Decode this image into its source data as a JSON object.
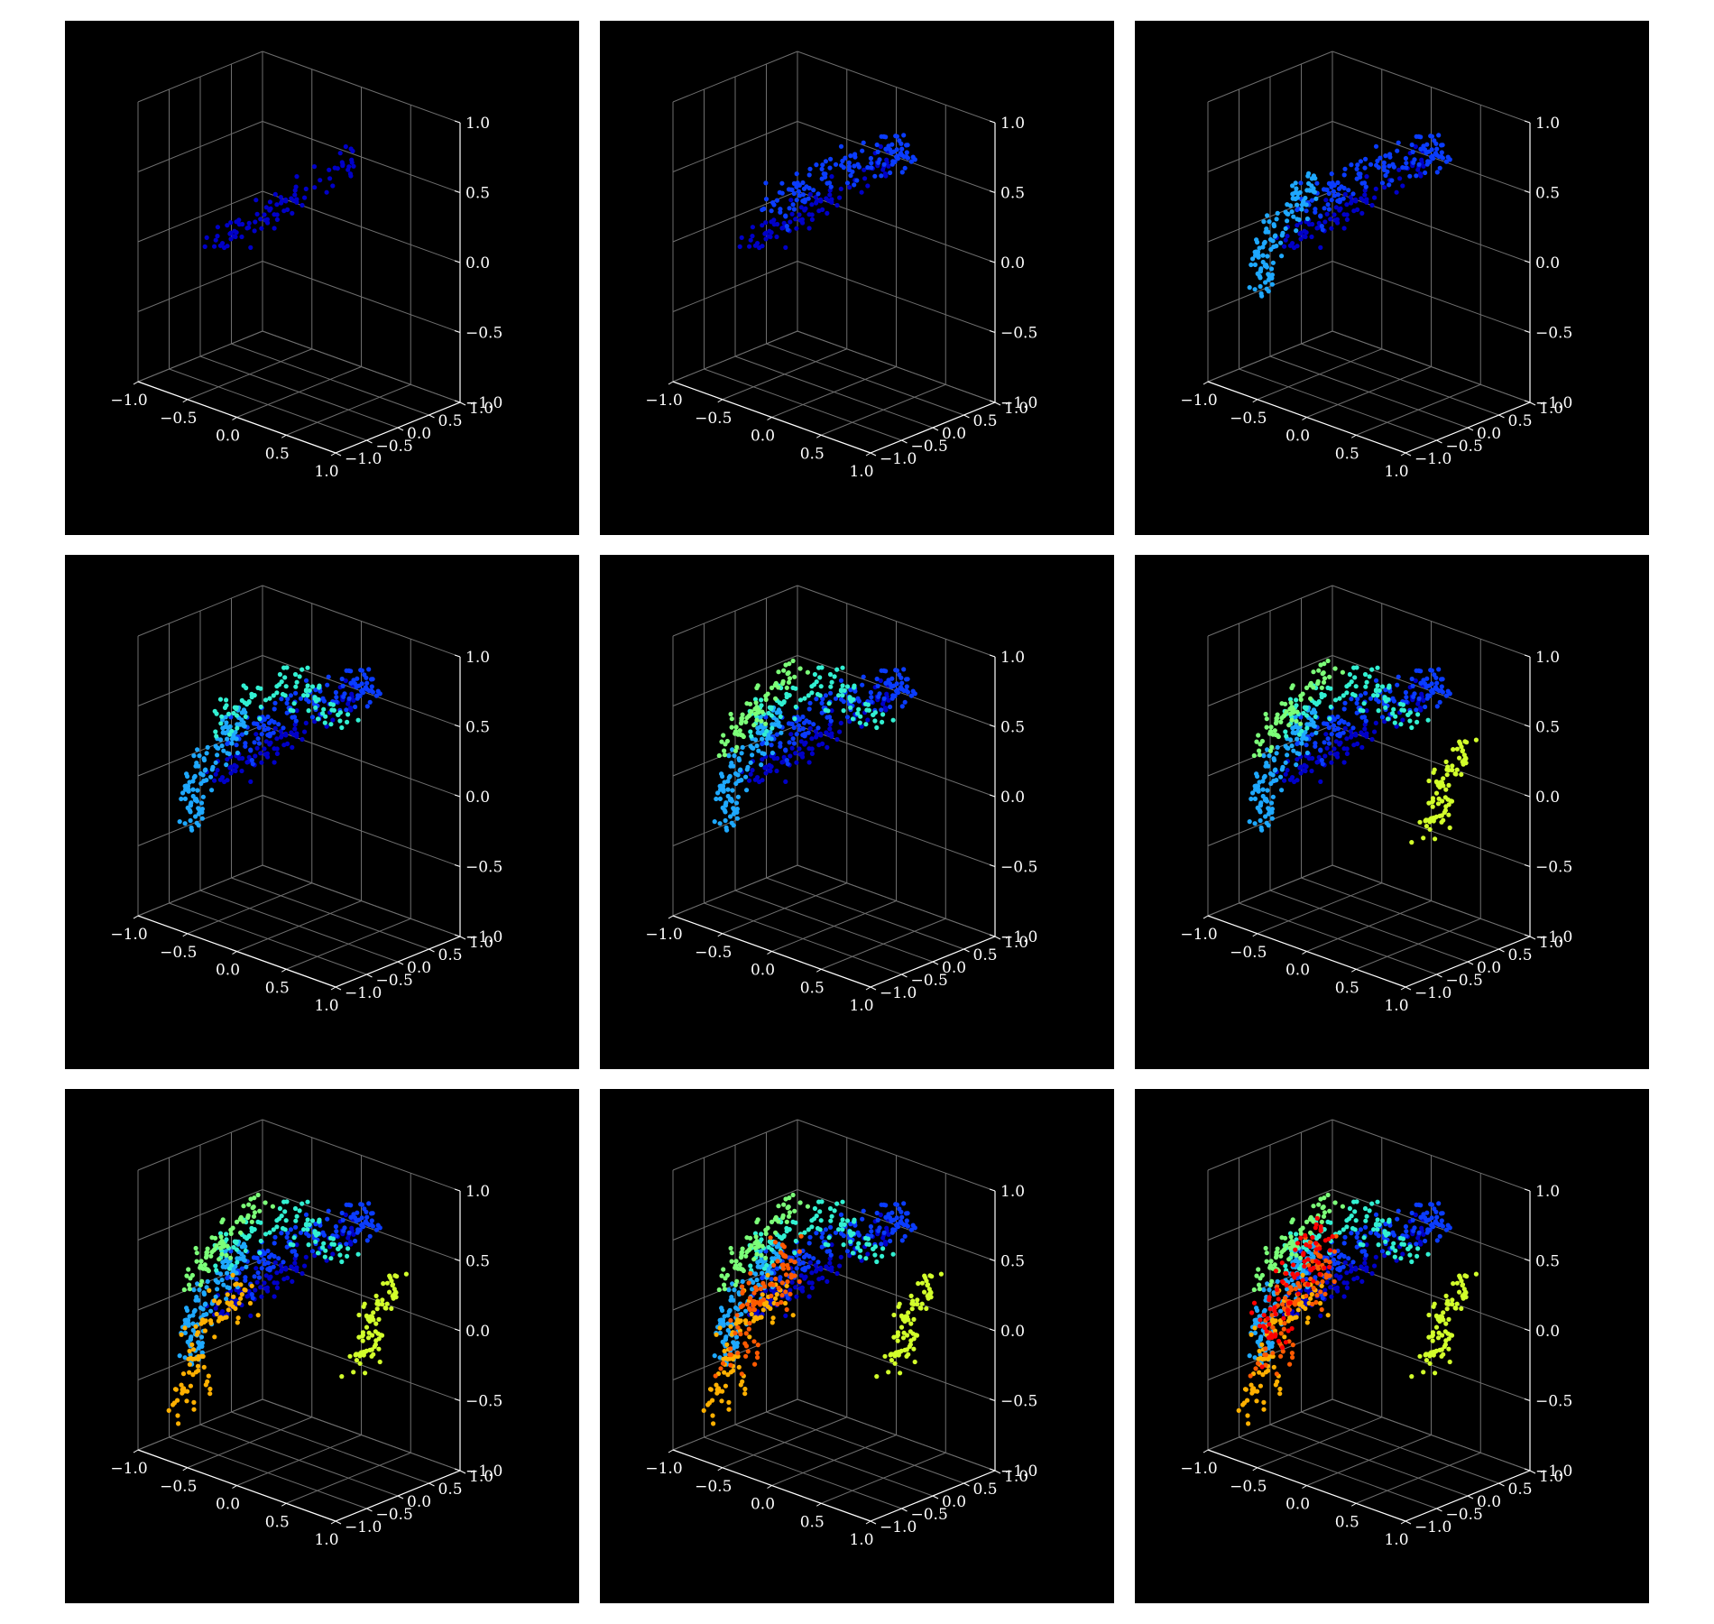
{
  "figure": {
    "background": "#ffffff",
    "panel_background": "#000000",
    "grid_color": "#6e6e6e",
    "text_color": "#ffffff",
    "rows": 3,
    "cols": 3
  },
  "chart_data": {
    "type": "scatter",
    "projection": "3d",
    "layout": "3x3 grid of cumulative 3D scatter panels",
    "axes": {
      "x": {
        "range": [
          -1.0,
          1.0
        ],
        "ticks": [
          -1.0,
          -0.5,
          0.0,
          0.5,
          1.0
        ],
        "tick_labels": [
          "−1.0",
          "−0.5",
          "0.0",
          "0.5",
          "1.0"
        ]
      },
      "y": {
        "range": [
          -1.0,
          1.0
        ],
        "ticks": [
          -1.0,
          -0.5,
          0.0,
          0.5,
          1.0
        ],
        "tick_labels": [
          "−1.0",
          "−0.5",
          "0.0",
          "0.5",
          "1.0"
        ]
      },
      "z": {
        "range": [
          -1.0,
          1.0
        ],
        "ticks": [
          -1.0,
          -0.5,
          0.0,
          0.5,
          1.0
        ],
        "tick_labels": [
          "−1.0",
          "−0.5",
          "0.0",
          "0.5",
          "1.0"
        ]
      }
    },
    "grid": true,
    "legend": "none",
    "colors": [
      "#0000c8",
      "#0a3cff",
      "#1ea8ff",
      "#32f0d2",
      "#7cff79",
      "#d2ff2b",
      "#ffb000",
      "#ff5a00",
      "#ff0000"
    ],
    "clusters": [
      {
        "color_index": 0,
        "n": 90,
        "line": [
          [
            -0.65,
            -0.55,
            0.0
          ],
          [
            -0.1,
            -0.15,
            0.3
          ],
          [
            0.35,
            0.3,
            0.75
          ]
        ],
        "spread": 0.06
      },
      {
        "color_index": 1,
        "n": 130,
        "line": [
          [
            -0.45,
            -0.45,
            0.25
          ],
          [
            0.05,
            0.05,
            0.6
          ],
          [
            0.45,
            0.55,
            0.75
          ]
        ],
        "spread": 0.08
      },
      {
        "color_index": 2,
        "n": 110,
        "line": [
          [
            -0.75,
            -0.6,
            -0.35
          ],
          [
            -0.65,
            -0.45,
            0.1
          ],
          [
            -0.35,
            -0.25,
            0.5
          ]
        ],
        "spread": 0.06
      },
      {
        "color_index": 3,
        "n": 90,
        "line": [
          [
            -0.6,
            -0.35,
            0.35
          ],
          [
            -0.1,
            0.0,
            0.75
          ],
          [
            0.35,
            0.4,
            0.45
          ]
        ],
        "spread": 0.07
      },
      {
        "color_index": 4,
        "n": 70,
        "line": [
          [
            -0.75,
            -0.55,
            0.15
          ],
          [
            -0.55,
            -0.35,
            0.55
          ],
          [
            -0.25,
            -0.05,
            0.85
          ]
        ],
        "spread": 0.05
      },
      {
        "color_index": 5,
        "n": 85,
        "line": [
          [
            0.35,
            0.35,
            -0.35
          ],
          [
            0.45,
            0.45,
            -0.05
          ],
          [
            0.5,
            0.7,
            0.3
          ]
        ],
        "spread": 0.06
      },
      {
        "color_index": 6,
        "n": 90,
        "line": [
          [
            -0.85,
            -0.6,
            -0.75
          ],
          [
            -0.7,
            -0.45,
            -0.25
          ],
          [
            -0.45,
            -0.25,
            0.2
          ]
        ],
        "spread": 0.07
      },
      {
        "color_index": 7,
        "n": 90,
        "line": [
          [
            -0.75,
            -0.55,
            -0.4
          ],
          [
            -0.5,
            -0.35,
            0.1
          ],
          [
            -0.3,
            -0.15,
            0.45
          ]
        ],
        "spread": 0.08
      },
      {
        "color_index": 8,
        "n": 80,
        "line": [
          [
            -0.75,
            -0.55,
            -0.3
          ],
          [
            -0.55,
            -0.35,
            0.2
          ],
          [
            -0.35,
            -0.2,
            0.55
          ]
        ],
        "spread": 0.08
      }
    ],
    "panels": [
      {
        "clusters_shown": [
          0
        ]
      },
      {
        "clusters_shown": [
          0,
          1
        ]
      },
      {
        "clusters_shown": [
          0,
          1,
          2
        ]
      },
      {
        "clusters_shown": [
          0,
          1,
          2,
          3
        ]
      },
      {
        "clusters_shown": [
          0,
          1,
          2,
          3,
          4
        ]
      },
      {
        "clusters_shown": [
          0,
          1,
          2,
          3,
          4,
          5
        ]
      },
      {
        "clusters_shown": [
          0,
          1,
          2,
          3,
          4,
          5,
          6
        ]
      },
      {
        "clusters_shown": [
          0,
          1,
          2,
          3,
          4,
          5,
          6,
          7
        ]
      },
      {
        "clusters_shown": [
          0,
          1,
          2,
          3,
          4,
          5,
          6,
          7,
          8
        ]
      }
    ]
  }
}
